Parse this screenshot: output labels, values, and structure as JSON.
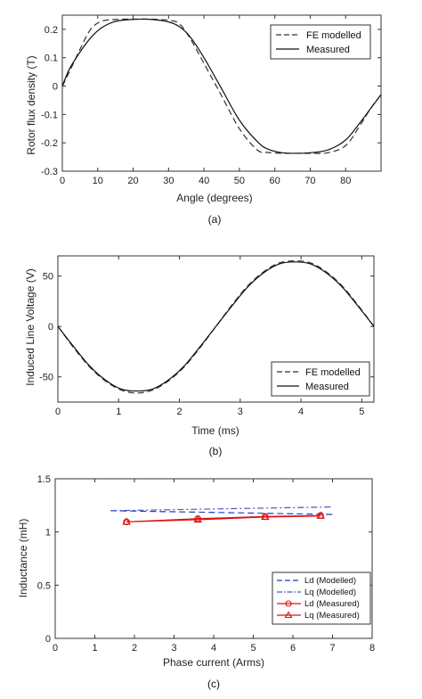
{
  "chart_data": [
    {
      "type": "line",
      "caption": "(a)",
      "xlabel": "Angle (degrees)",
      "ylabel": "Rotor flux density (T)",
      "xlim": [
        0,
        90
      ],
      "ylim": [
        -0.3,
        0.25
      ],
      "xticks": [
        0,
        10,
        20,
        30,
        40,
        50,
        60,
        70,
        80
      ],
      "xtick_labels": [
        "0",
        "10",
        "20",
        "30",
        "40",
        "50",
        "60",
        "70",
        "80"
      ],
      "yticks": [
        -0.3,
        -0.2,
        -0.1,
        0,
        0.1,
        0.2
      ],
      "ytick_labels": [
        "-0.3",
        "-0.2",
        "-0.1",
        "0",
        "0.1",
        "0.2"
      ],
      "legend_position": "top-right",
      "series": [
        {
          "name": "FE modelled",
          "style": "dashed",
          "color": "#333333",
          "x": [
            0,
            2,
            5,
            8,
            11,
            15,
            20,
            25,
            30,
            33,
            36,
            40,
            45,
            50,
            55,
            58,
            62,
            66,
            70,
            75,
            80,
            84,
            87,
            90
          ],
          "y": [
            0,
            0.05,
            0.13,
            0.2,
            0.228,
            0.235,
            0.236,
            0.236,
            0.232,
            0.22,
            0.17,
            0.08,
            -0.035,
            -0.15,
            -0.225,
            -0.234,
            -0.237,
            -0.237,
            -0.237,
            -0.235,
            -0.21,
            -0.14,
            -0.08,
            -0.03
          ]
        },
        {
          "name": "Measured",
          "style": "solid",
          "color": "#111111",
          "x": [
            0,
            2,
            5,
            8,
            11,
            15,
            20,
            25,
            30,
            33,
            36,
            40,
            45,
            50,
            55,
            58,
            62,
            66,
            70,
            75,
            80,
            84,
            87,
            90
          ],
          "y": [
            0,
            0.06,
            0.12,
            0.17,
            0.205,
            0.228,
            0.235,
            0.235,
            0.226,
            0.21,
            0.175,
            0.1,
            -0.01,
            -0.12,
            -0.195,
            -0.222,
            -0.235,
            -0.237,
            -0.235,
            -0.225,
            -0.19,
            -0.13,
            -0.08,
            -0.03
          ]
        }
      ]
    },
    {
      "type": "line",
      "caption": "(b)",
      "xlabel": "Time (ms)",
      "ylabel": "Induced Line Voltage (V)",
      "xlim": [
        0,
        5.2
      ],
      "ylim": [
        -75,
        70
      ],
      "xticks": [
        0,
        1,
        2,
        3,
        4,
        5
      ],
      "xtick_labels": [
        "0",
        "1",
        "2",
        "3",
        "4",
        "5"
      ],
      "yticks": [
        -50,
        0,
        50
      ],
      "ytick_labels": [
        "-50",
        "0",
        "50"
      ],
      "legend_position": "bottom-right",
      "series": [
        {
          "name": "FE modelled",
          "style": "dashed",
          "color": "#333333",
          "x": [
            0,
            0.26,
            0.52,
            0.78,
            1.04,
            1.3,
            1.56,
            1.82,
            2.08,
            2.34,
            2.6,
            2.86,
            3.12,
            3.38,
            3.64,
            3.9,
            4.16,
            4.42,
            4.68,
            4.94,
            5.2
          ],
          "y": [
            0,
            -21,
            -40,
            -54,
            -63,
            -66,
            -63,
            -54,
            -40,
            -21,
            0,
            21,
            40,
            54,
            63,
            65,
            63,
            54,
            40,
            21,
            0
          ]
        },
        {
          "name": "Measured",
          "style": "solid",
          "color": "#111111",
          "x": [
            0,
            0.26,
            0.52,
            0.78,
            1.04,
            1.3,
            1.56,
            1.82,
            2.08,
            2.34,
            2.6,
            2.86,
            3.12,
            3.38,
            3.64,
            3.9,
            4.16,
            4.42,
            4.68,
            4.94,
            5.2
          ],
          "y": [
            0,
            -20,
            -39,
            -53,
            -62,
            -64,
            -62,
            -53,
            -39,
            -20,
            0,
            20,
            39,
            53,
            62,
            64,
            62,
            53,
            39,
            20,
            0
          ]
        }
      ]
    },
    {
      "type": "line",
      "caption": "(c)",
      "xlabel": "Phase current (Arms)",
      "ylabel": "Inductance (mH)",
      "xlim": [
        0,
        8
      ],
      "ylim": [
        0,
        1.5
      ],
      "xticks": [
        0,
        1,
        2,
        3,
        4,
        5,
        6,
        7,
        8
      ],
      "xtick_labels": [
        "0",
        "1",
        "2",
        "3",
        "4",
        "5",
        "6",
        "7",
        "8"
      ],
      "yticks": [
        0,
        0.5,
        1,
        1.5
      ],
      "ytick_labels": [
        "0",
        "0.5",
        "1",
        "1.5"
      ],
      "legend_position": "bottom-right",
      "series": [
        {
          "name": "Ld (Modelled)",
          "style": "dashed",
          "color": "#1f3fbf",
          "marker": "none",
          "x": [
            1.4,
            7
          ],
          "y": [
            1.2,
            1.165
          ]
        },
        {
          "name": "Lq (Modelled)",
          "style": "dashdot",
          "color": "#4a55c8",
          "marker": "none",
          "x": [
            1.4,
            7
          ],
          "y": [
            1.2,
            1.235
          ]
        },
        {
          "name": "Ld (Measured)",
          "style": "solid",
          "color": "#e01010",
          "marker": "circle",
          "x": [
            1.8,
            3.6,
            5.3,
            6.7
          ],
          "y": [
            1.095,
            1.125,
            1.145,
            1.155
          ]
        },
        {
          "name": "Lq (Measured)",
          "style": "solid",
          "color": "#e01010",
          "marker": "triangle",
          "x": [
            1.8,
            3.6,
            5.3,
            6.7
          ],
          "y": [
            1.095,
            1.115,
            1.14,
            1.15
          ]
        }
      ]
    }
  ]
}
